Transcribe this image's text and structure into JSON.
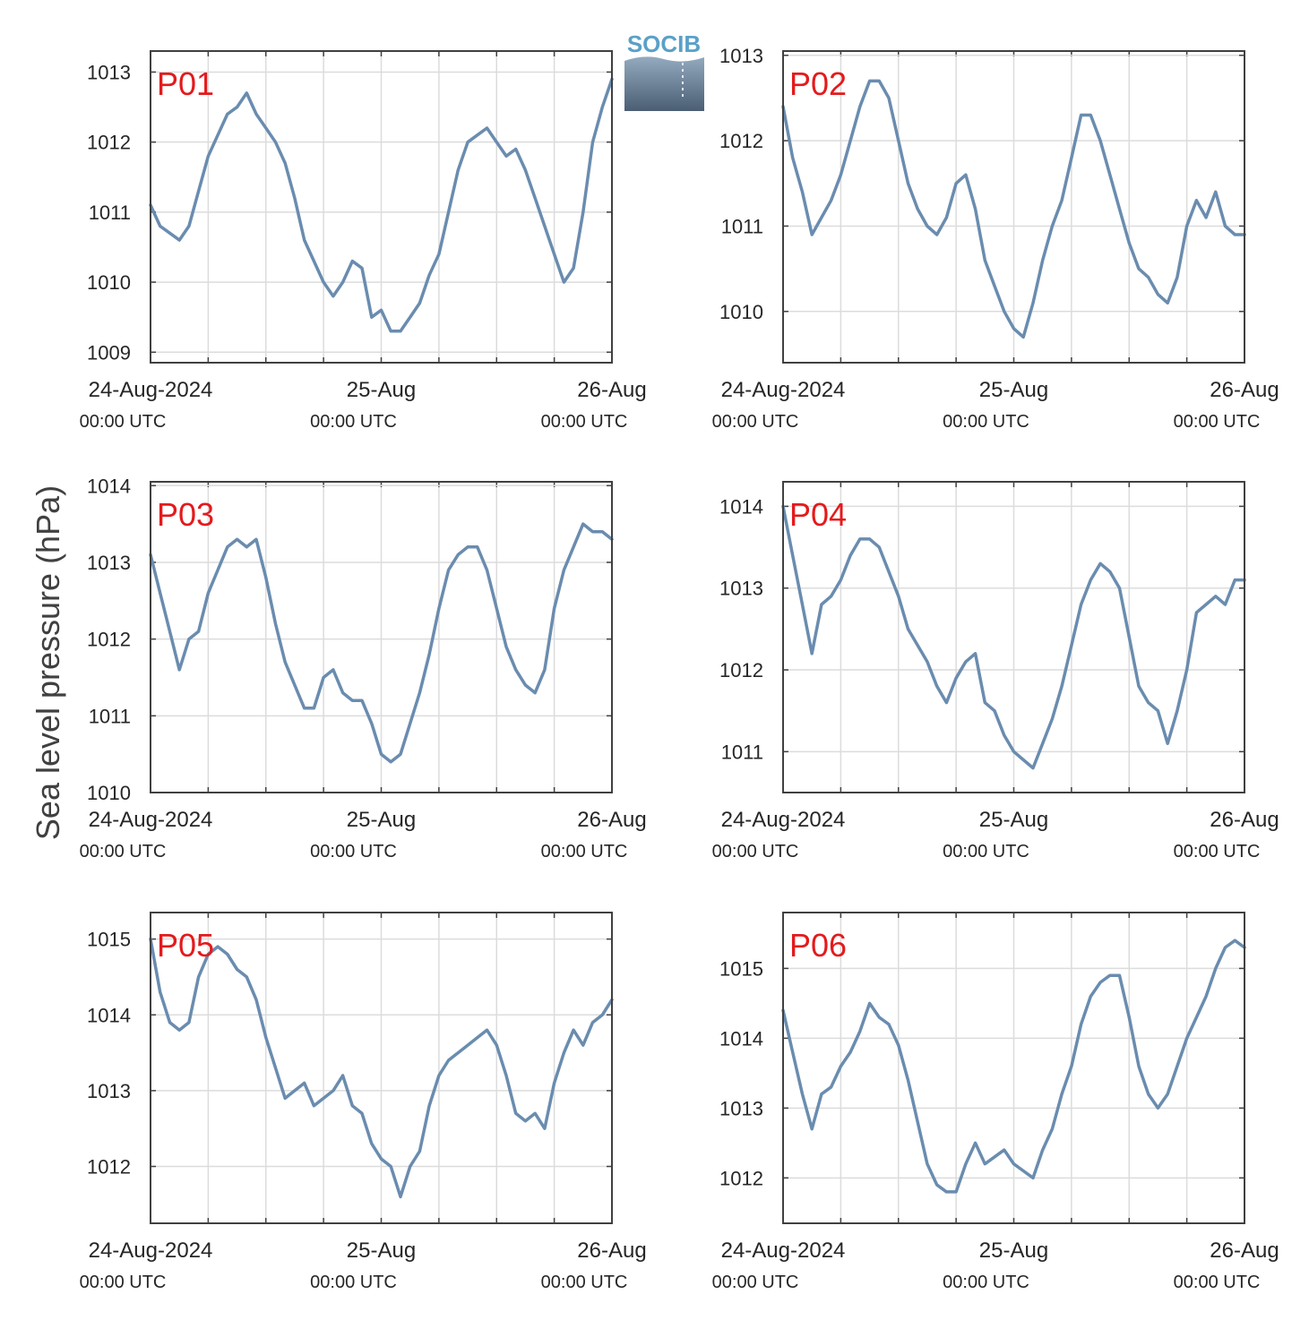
{
  "ylabel": "Sea level pressure (hPa)",
  "logo_text": "SOCIB",
  "colors": {
    "line": "#6a8caf",
    "label": "#e41a1c",
    "grid": "#dcdcdc",
    "axis": "#404040"
  },
  "xticks": [
    {
      "date": "24-Aug-2024",
      "time": "00:00 UTC"
    },
    {
      "date": "25-Aug",
      "time": "00:00 UTC"
    },
    {
      "date": "26-Aug",
      "time": "00:00 UTC"
    }
  ],
  "chart_data": [
    {
      "type": "line",
      "label": "P01",
      "xlim_hours": [
        0,
        48
      ],
      "ylim": [
        1008.85,
        1013.3
      ],
      "yticks": [
        1009,
        1010,
        1011,
        1012,
        1013
      ],
      "x_hours": [
        0,
        1,
        2,
        3,
        4,
        5,
        6,
        7,
        8,
        9,
        10,
        11,
        12,
        13,
        14,
        15,
        16,
        17,
        18,
        19,
        20,
        21,
        22,
        23,
        24,
        25,
        26,
        27,
        28,
        29,
        30,
        31,
        32,
        33,
        34,
        35,
        36,
        37,
        38,
        39,
        40,
        41,
        42,
        43,
        44,
        45,
        46,
        47,
        48
      ],
      "values": [
        1011.1,
        1010.8,
        1010.7,
        1010.6,
        1010.8,
        1011.3,
        1011.8,
        1012.1,
        1012.4,
        1012.5,
        1012.7,
        1012.4,
        1012.2,
        1012.0,
        1011.7,
        1011.2,
        1010.6,
        1010.3,
        1010.0,
        1009.8,
        1010.0,
        1010.3,
        1010.2,
        1009.5,
        1009.6,
        1009.3,
        1009.3,
        1009.5,
        1009.7,
        1010.1,
        1010.4,
        1011.0,
        1011.6,
        1012.0,
        1012.1,
        1012.2,
        1012.0,
        1011.8,
        1011.9,
        1011.6,
        1011.2,
        1010.8,
        1010.4,
        1010.0,
        1010.2,
        1011.0,
        1012.0,
        1012.5,
        1012.9
      ]
    },
    {
      "type": "line",
      "label": "P02",
      "xlim_hours": [
        0,
        48
      ],
      "ylim": [
        1009.4,
        1013.05
      ],
      "yticks": [
        1010,
        1011,
        1012,
        1013
      ],
      "x_hours": [
        0,
        1,
        2,
        3,
        4,
        5,
        6,
        7,
        8,
        9,
        10,
        11,
        12,
        13,
        14,
        15,
        16,
        17,
        18,
        19,
        20,
        21,
        22,
        23,
        24,
        25,
        26,
        27,
        28,
        29,
        30,
        31,
        32,
        33,
        34,
        35,
        36,
        37,
        38,
        39,
        40,
        41,
        42,
        43,
        44,
        45,
        46,
        47,
        48
      ],
      "values": [
        1012.4,
        1011.8,
        1011.4,
        1010.9,
        1011.1,
        1011.3,
        1011.6,
        1012.0,
        1012.4,
        1012.7,
        1012.7,
        1012.5,
        1012.0,
        1011.5,
        1011.2,
        1011.0,
        1010.9,
        1011.1,
        1011.5,
        1011.6,
        1011.2,
        1010.6,
        1010.3,
        1010.0,
        1009.8,
        1009.7,
        1010.1,
        1010.6,
        1011.0,
        1011.3,
        1011.8,
        1012.3,
        1012.3,
        1012.0,
        1011.6,
        1011.2,
        1010.8,
        1010.5,
        1010.4,
        1010.2,
        1010.1,
        1010.4,
        1011.0,
        1011.3,
        1011.1,
        1011.4,
        1011.0,
        1010.9,
        1010.9
      ]
    },
    {
      "type": "line",
      "label": "P03",
      "xlim_hours": [
        0,
        48
      ],
      "ylim": [
        1010.0,
        1014.05
      ],
      "yticks": [
        1010,
        1011,
        1012,
        1013,
        1014
      ],
      "x_hours": [
        0,
        1,
        2,
        3,
        4,
        5,
        6,
        7,
        8,
        9,
        10,
        11,
        12,
        13,
        14,
        15,
        16,
        17,
        18,
        19,
        20,
        21,
        22,
        23,
        24,
        25,
        26,
        27,
        28,
        29,
        30,
        31,
        32,
        33,
        34,
        35,
        36,
        37,
        38,
        39,
        40,
        41,
        42,
        43,
        44,
        45,
        46,
        47,
        48
      ],
      "values": [
        1013.1,
        1012.6,
        1012.1,
        1011.6,
        1012.0,
        1012.1,
        1012.6,
        1012.9,
        1013.2,
        1013.3,
        1013.2,
        1013.3,
        1012.8,
        1012.2,
        1011.7,
        1011.4,
        1011.1,
        1011.1,
        1011.5,
        1011.6,
        1011.3,
        1011.2,
        1011.2,
        1010.9,
        1010.5,
        1010.4,
        1010.5,
        1010.9,
        1011.3,
        1011.8,
        1012.4,
        1012.9,
        1013.1,
        1013.2,
        1013.2,
        1012.9,
        1012.4,
        1011.9,
        1011.6,
        1011.4,
        1011.3,
        1011.6,
        1012.4,
        1012.9,
        1013.2,
        1013.5,
        1013.4,
        1013.4,
        1013.3
      ]
    },
    {
      "type": "line",
      "label": "P04",
      "xlim_hours": [
        0,
        48
      ],
      "ylim": [
        1010.5,
        1014.3
      ],
      "yticks": [
        1011,
        1012,
        1013,
        1014
      ],
      "x_hours": [
        0,
        1,
        2,
        3,
        4,
        5,
        6,
        7,
        8,
        9,
        10,
        11,
        12,
        13,
        14,
        15,
        16,
        17,
        18,
        19,
        20,
        21,
        22,
        23,
        24,
        25,
        26,
        27,
        28,
        29,
        30,
        31,
        32,
        33,
        34,
        35,
        36,
        37,
        38,
        39,
        40,
        41,
        42,
        43,
        44,
        45,
        46,
        47,
        48
      ],
      "values": [
        1014.0,
        1013.4,
        1012.8,
        1012.2,
        1012.8,
        1012.9,
        1013.1,
        1013.4,
        1013.6,
        1013.6,
        1013.5,
        1013.2,
        1012.9,
        1012.5,
        1012.3,
        1012.1,
        1011.8,
        1011.6,
        1011.9,
        1012.1,
        1012.2,
        1011.6,
        1011.5,
        1011.2,
        1011.0,
        1010.9,
        1010.8,
        1011.1,
        1011.4,
        1011.8,
        1012.3,
        1012.8,
        1013.1,
        1013.3,
        1013.2,
        1013.0,
        1012.4,
        1011.8,
        1011.6,
        1011.5,
        1011.1,
        1011.5,
        1012.0,
        1012.7,
        1012.8,
        1012.9,
        1012.8,
        1013.1,
        1013.1
      ]
    },
    {
      "type": "line",
      "label": "P05",
      "xlim_hours": [
        0,
        48
      ],
      "ylim": [
        1011.25,
        1015.35
      ],
      "yticks": [
        1012,
        1013,
        1014,
        1015
      ],
      "x_hours": [
        0,
        1,
        2,
        3,
        4,
        5,
        6,
        7,
        8,
        9,
        10,
        11,
        12,
        13,
        14,
        15,
        16,
        17,
        18,
        19,
        20,
        21,
        22,
        23,
        24,
        25,
        26,
        27,
        28,
        29,
        30,
        31,
        32,
        33,
        34,
        35,
        36,
        37,
        38,
        39,
        40,
        41,
        42,
        43,
        44,
        45,
        46,
        47,
        48
      ],
      "values": [
        1015.0,
        1014.3,
        1013.9,
        1013.8,
        1013.9,
        1014.5,
        1014.8,
        1014.9,
        1014.8,
        1014.6,
        1014.5,
        1014.2,
        1013.7,
        1013.3,
        1012.9,
        1013.0,
        1013.1,
        1012.8,
        1012.9,
        1013.0,
        1013.2,
        1012.8,
        1012.7,
        1012.3,
        1012.1,
        1012.0,
        1011.6,
        1012.0,
        1012.2,
        1012.8,
        1013.2,
        1013.4,
        1013.5,
        1013.6,
        1013.7,
        1013.8,
        1013.6,
        1013.2,
        1012.7,
        1012.6,
        1012.7,
        1012.5,
        1013.1,
        1013.5,
        1013.8,
        1013.6,
        1013.9,
        1014.0,
        1014.2
      ]
    },
    {
      "type": "line",
      "label": "P06",
      "xlim_hours": [
        0,
        48
      ],
      "ylim": [
        1011.35,
        1015.8
      ],
      "yticks": [
        1012,
        1013,
        1014,
        1015
      ],
      "x_hours": [
        0,
        1,
        2,
        3,
        4,
        5,
        6,
        7,
        8,
        9,
        10,
        11,
        12,
        13,
        14,
        15,
        16,
        17,
        18,
        19,
        20,
        21,
        22,
        23,
        24,
        25,
        26,
        27,
        28,
        29,
        30,
        31,
        32,
        33,
        34,
        35,
        36,
        37,
        38,
        39,
        40,
        41,
        42,
        43,
        44,
        45,
        46,
        47,
        48
      ],
      "values": [
        1014.4,
        1013.8,
        1013.2,
        1012.7,
        1013.2,
        1013.3,
        1013.6,
        1013.8,
        1014.1,
        1014.5,
        1014.3,
        1014.2,
        1013.9,
        1013.4,
        1012.8,
        1012.2,
        1011.9,
        1011.8,
        1011.8,
        1012.2,
        1012.5,
        1012.2,
        1012.3,
        1012.4,
        1012.2,
        1012.1,
        1012.0,
        1012.4,
        1012.7,
        1013.2,
        1013.6,
        1014.2,
        1014.6,
        1014.8,
        1014.9,
        1014.9,
        1014.3,
        1013.6,
        1013.2,
        1013.0,
        1013.2,
        1013.6,
        1014.0,
        1014.3,
        1014.6,
        1015.0,
        1015.3,
        1015.4,
        1015.3
      ]
    }
  ]
}
